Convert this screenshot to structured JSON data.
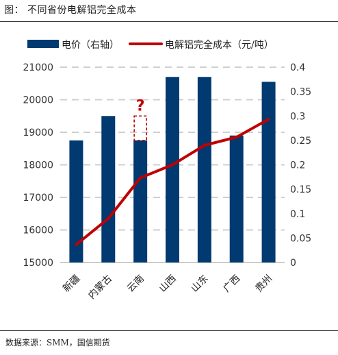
{
  "figure_title": "图：   不同省份电解铝完全成本",
  "source": "数据来源：SMM，国信期货",
  "annotation": "?",
  "colors": {
    "bar": "#003a70",
    "line": "#c00000",
    "grid": "#cfcfcf",
    "annotation": "#c00000"
  },
  "chart_data": {
    "type": "bar",
    "categories": [
      "新疆",
      "内蒙古",
      "云南",
      "山西",
      "山东",
      "广西",
      "贵州"
    ],
    "series": [
      {
        "name": "电价（右轴）",
        "type": "bar",
        "axis": "right",
        "values": [
          0.25,
          0.3,
          0.25,
          0.38,
          0.38,
          0.26,
          0.37
        ]
      },
      {
        "name": "电解铝完全成本（元/吨）",
        "type": "line",
        "axis": "left",
        "values": [
          15550,
          16350,
          17600,
          18000,
          18600,
          18850,
          19400
        ]
      }
    ],
    "yleft": {
      "ylim": [
        15000,
        21000
      ],
      "ticks": [
        "15000",
        "16000",
        "17000",
        "18000",
        "19000",
        "20000",
        "21000"
      ]
    },
    "yright": {
      "ylim": [
        0,
        0.4
      ],
      "ticks": [
        "0",
        "0.05",
        "0.1",
        "0.15",
        "0.2",
        "0.25",
        "0.3",
        "0.35",
        "0.4"
      ]
    },
    "annotation_category": "云南",
    "annotation_range": [
      0.25,
      0.3
    ],
    "grid": true,
    "legend_position": "top"
  }
}
